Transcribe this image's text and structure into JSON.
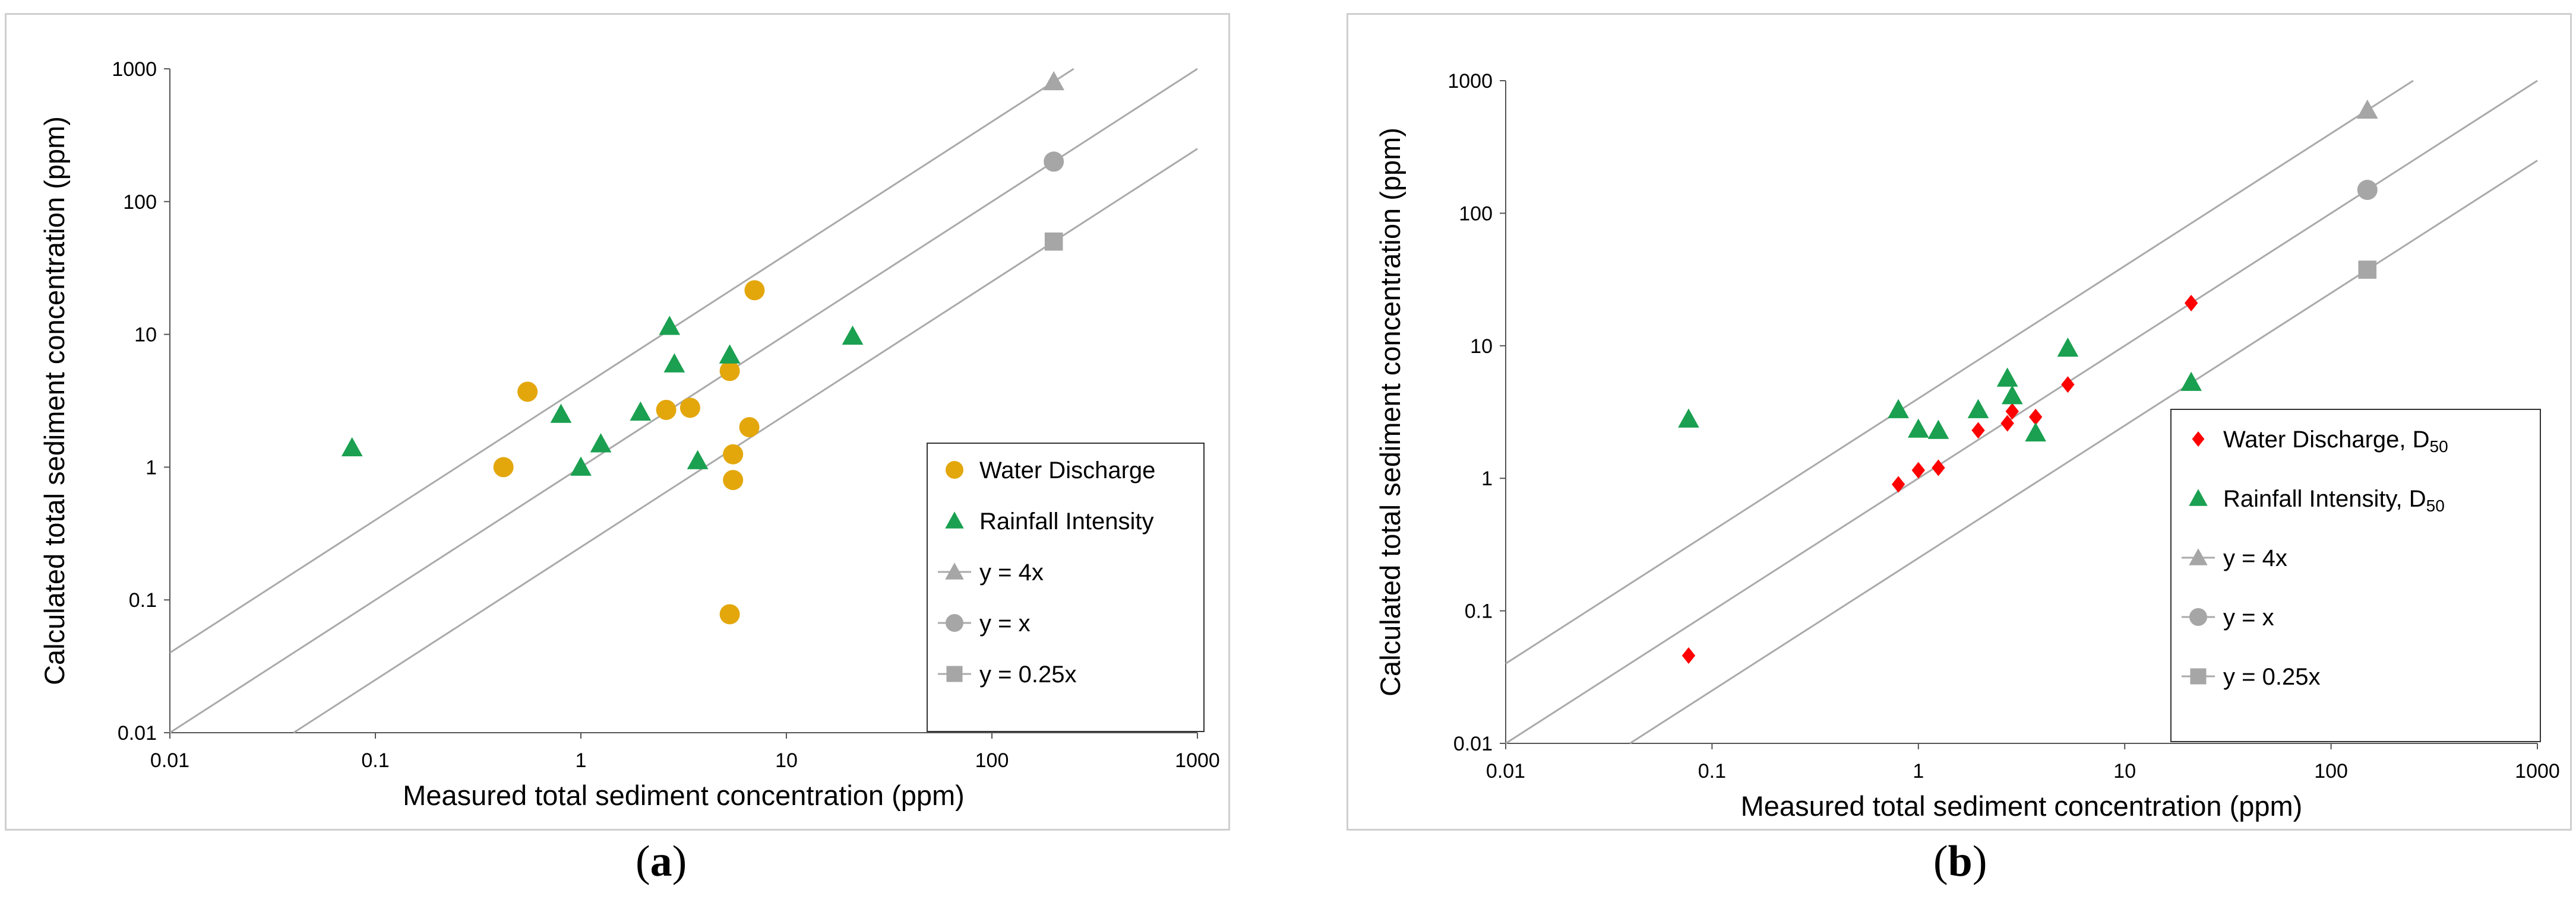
{
  "panels": [
    {
      "id": "a",
      "label_letter": "a"
    },
    {
      "id": "b",
      "label_letter": "b"
    }
  ],
  "colors": {
    "water": "#e3a70c",
    "water_b": "#ff0000",
    "rainfall": "#1aa050",
    "reference": "#aaaaaa",
    "reference_marker": "#a6a6a6"
  },
  "chart_data": [
    {
      "id": "a",
      "type": "scatter",
      "xscale": "log",
      "yscale": "log",
      "xlim": [
        0.01,
        1000
      ],
      "ylim": [
        0.01,
        1000
      ],
      "xticks": [
        "0.01",
        "0.1",
        "1",
        "10",
        "100",
        "1000"
      ],
      "yticks": [
        "0.01",
        "0.1",
        "1",
        "10",
        "100",
        "1000"
      ],
      "xlabel": "Measured total sediment concentration (ppm)",
      "ylabel": "Calculated total sediment concentration (ppm)",
      "legend_position": "bottom-right",
      "series": [
        {
          "name": "Water Discharge",
          "marker": "circle",
          "color": "#e3a70c",
          "x": [
            0.42,
            0.55,
            2.6,
            3.4,
            5.3,
            5.3,
            5.5,
            5.5,
            6.6,
            7.0
          ],
          "y": [
            1.0,
            3.7,
            2.7,
            2.8,
            5.3,
            0.078,
            1.25,
            0.8,
            2.0,
            21.5
          ]
        },
        {
          "name": "Rainfall Intensity",
          "marker": "triangle",
          "color": "#1aa050",
          "x": [
            0.077,
            0.8,
            1.0,
            1.25,
            1.95,
            2.7,
            2.85,
            3.7,
            5.3,
            21.0
          ],
          "y": [
            1.4,
            2.5,
            1.0,
            1.5,
            2.6,
            11.5,
            6.0,
            1.12,
            7.0,
            9.7
          ]
        }
      ],
      "reference_lines": [
        {
          "name": "y = 4x",
          "factor": 4,
          "marker": "triangle",
          "marker_x": 200,
          "x_range": [
            0.01,
            250
          ]
        },
        {
          "name": "y = x",
          "factor": 1,
          "marker": "circle",
          "marker_x": 200,
          "x_range": [
            0.01,
            1000
          ]
        },
        {
          "name": "y = 0.25x",
          "factor": 0.25,
          "marker": "square",
          "marker_x": 200,
          "x_range": [
            0.04,
            1000
          ]
        }
      ],
      "legend": [
        {
          "text": "Water Discharge",
          "marker": "circle",
          "color": "#e3a70c"
        },
        {
          "text": "Rainfall Intensity",
          "marker": "triangle",
          "color": "#1aa050"
        },
        {
          "text": "y = 4x",
          "marker": "triangle-line",
          "color": "#a6a6a6"
        },
        {
          "text": "y = x",
          "marker": "circle-line",
          "color": "#a6a6a6"
        },
        {
          "text": "y = 0.25x",
          "marker": "square-line",
          "color": "#a6a6a6"
        }
      ]
    },
    {
      "id": "b",
      "type": "scatter",
      "xscale": "log",
      "yscale": "log",
      "xlim": [
        0.01,
        1000
      ],
      "ylim": [
        0.01,
        1000
      ],
      "xticks": [
        "0.01",
        "0.1",
        "1",
        "10",
        "100",
        "1000"
      ],
      "yticks": [
        "0.01",
        "0.1",
        "1",
        "10",
        "100",
        "1000"
      ],
      "xlabel": "Measured total sediment concentration (ppm)",
      "ylabel": "Calculated total sediment concentration (ppm)",
      "legend_position": "bottom-right",
      "series": [
        {
          "name": "Water Discharge, D50",
          "marker": "diamond",
          "color": "#ff0000",
          "x": [
            0.077,
            0.8,
            1.0,
            1.25,
            1.95,
            2.7,
            2.85,
            3.7,
            5.3,
            21.0
          ],
          "y": [
            0.046,
            0.9,
            1.15,
            1.2,
            2.3,
            2.6,
            3.2,
            2.9,
            5.1,
            21.0
          ]
        },
        {
          "name": "Rainfall Intensity, D50",
          "marker": "triangle",
          "color": "#1aa050",
          "x": [
            0.077,
            0.8,
            1.0,
            1.25,
            1.95,
            2.7,
            2.85,
            3.7,
            5.3,
            21.0
          ],
          "y": [
            2.8,
            3.3,
            2.35,
            2.3,
            3.3,
            5.7,
            4.2,
            2.2,
            9.6,
            5.3
          ]
        }
      ],
      "reference_lines": [
        {
          "name": "y = 4x",
          "factor": 4,
          "marker": "triangle",
          "marker_x": 150,
          "x_range": [
            0.01,
            250
          ]
        },
        {
          "name": "y = x",
          "factor": 1,
          "marker": "circle",
          "marker_x": 150,
          "x_range": [
            0.01,
            1000
          ]
        },
        {
          "name": "y = 0.25x",
          "factor": 0.25,
          "marker": "square",
          "marker_x": 150,
          "x_range": [
            0.04,
            1000
          ]
        }
      ],
      "legend": [
        {
          "text": "Water Discharge, D",
          "sub": "50",
          "marker": "diamond",
          "color": "#ff0000"
        },
        {
          "text": "Rainfall Intensity, D",
          "sub": "50",
          "marker": "triangle",
          "color": "#1aa050"
        },
        {
          "text": "y = 4x",
          "marker": "triangle-line",
          "color": "#a6a6a6"
        },
        {
          "text": "y = x",
          "marker": "circle-line",
          "color": "#a6a6a6"
        },
        {
          "text": "y = 0.25x",
          "marker": "square-line",
          "color": "#a6a6a6"
        }
      ]
    }
  ]
}
